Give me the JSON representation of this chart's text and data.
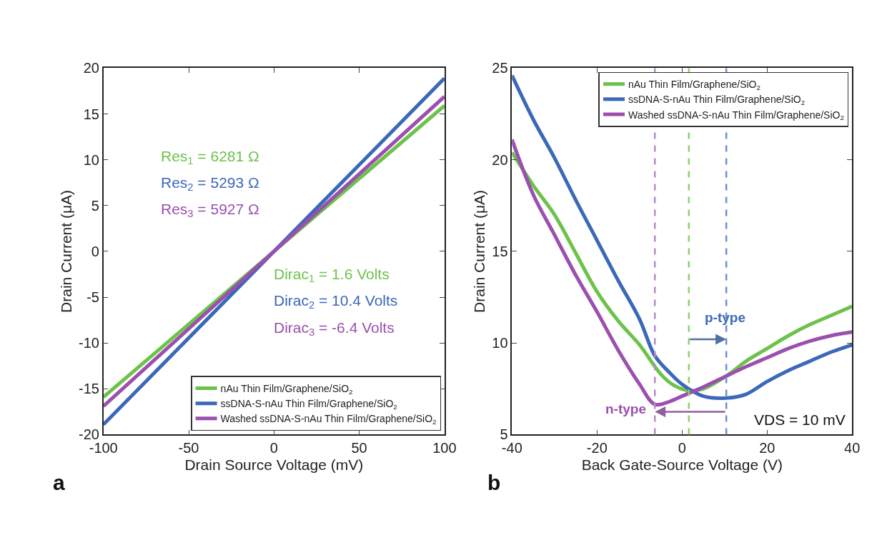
{
  "chart_data": [
    {
      "type": "line",
      "xlabel": "Drain Source Voltage (mV)",
      "ylabel": "Drain Current (μA)",
      "x": [
        -100,
        100
      ],
      "xlim": [
        -100,
        100
      ],
      "xticks": [
        -100,
        -50,
        0,
        50,
        100
      ],
      "ylim": [
        -20,
        20
      ],
      "yticks": [
        -20,
        -15,
        -10,
        -5,
        0,
        5,
        10,
        15,
        20
      ],
      "series": [
        {
          "name": "nAu Thin Film/Graphene/SiO$_{2}$",
          "color": "#6cc24a",
          "values": [
            -15.9,
            15.9
          ]
        },
        {
          "name": "ssDNA-S-nAu Thin Film/Graphene/SiO$_{2}$",
          "color": "#3b68b8",
          "values": [
            -18.9,
            18.9
          ]
        },
        {
          "name": "Washed ssDNA-S-nAu Thin Film/Graphene/SiO$_{2}$",
          "color": "#9b4fae",
          "values": [
            -16.9,
            16.9
          ]
        }
      ],
      "annotations": [
        "Res$_{1}$ = 6281 Ω",
        "Res$_{2}$ = 5293 Ω",
        "Res$_{3}$ = 5927 Ω",
        "Dirac$_{1}$ = 1.6 Volts",
        "Dirac$_{2}$ = 10.4 Volts",
        "Dirac$_{3}$ = -6.4 Volts",
        "a"
      ],
      "legend": "bottom right",
      "line_style": "solid",
      "marker": "none"
    },
    {
      "type": "line",
      "xlabel": "Back Gate-Source Voltage (V)",
      "ylabel": "Drain Current (μA)",
      "xlim": [
        -40,
        40
      ],
      "xticks": [
        -40,
        -20,
        0,
        20,
        40
      ],
      "ylim": [
        5,
        25
      ],
      "yticks": [
        5,
        10,
        15,
        20,
        25
      ],
      "series": [
        {
          "name": "nAu Thin Film/Graphene/SiO$_{2}$",
          "color": "#6cc24a",
          "x": [
            -40,
            -35,
            -30,
            -25,
            -20,
            -15,
            -10,
            -5,
            -2,
            1.6,
            5,
            10.4,
            15,
            20,
            25,
            30,
            35,
            40
          ],
          "values": [
            20.4,
            18.6,
            17.0,
            14.9,
            12.8,
            11.2,
            9.9,
            8.3,
            7.7,
            7.4,
            7.5,
            8.2,
            9.0,
            9.7,
            10.4,
            11.0,
            11.5,
            12.0
          ]
        },
        {
          "name": "ssDNA-S-nAu Thin Film/Graphene/SiO$_{2}$",
          "color": "#3b68b8",
          "x": [
            -40,
            -35,
            -30,
            -25,
            -20,
            -15,
            -10,
            -6.4,
            -3,
            0,
            5,
            10.4,
            15,
            20,
            25,
            30,
            35,
            40
          ],
          "values": [
            24.6,
            22.2,
            20.1,
            17.8,
            15.6,
            13.4,
            11.3,
            9.3,
            8.4,
            7.75,
            7.1,
            7.0,
            7.2,
            7.9,
            8.5,
            9.0,
            9.5,
            9.9
          ]
        },
        {
          "name": "Washed ssDNA-S-nAu Thin Film/Graphene/SiO$_{2}$",
          "color": "#9b4fae",
          "x": [
            -40,
            -35,
            -30,
            -25,
            -20,
            -15,
            -10,
            -6.4,
            -3,
            0,
            5,
            10.4,
            15,
            20,
            25,
            30,
            35,
            40
          ],
          "values": [
            21.1,
            18.1,
            15.9,
            13.7,
            11.7,
            9.6,
            7.75,
            6.65,
            6.8,
            7.1,
            7.6,
            8.2,
            8.7,
            9.2,
            9.7,
            10.1,
            10.4,
            10.6
          ]
        }
      ],
      "ref_lines": [
        {
          "axis": "x",
          "value": -6.4,
          "color": "#b48cc8",
          "line_style": "dashed"
        },
        {
          "axis": "x",
          "value": 1.6,
          "color": "#8fd16a",
          "line_style": "dashed"
        },
        {
          "axis": "x",
          "value": 10.4,
          "color": "#6b8fd0",
          "line_style": "dashed"
        }
      ],
      "annotations": [
        "p-type",
        "n-type",
        "VDS = 10 mV",
        "b"
      ],
      "legend": "top right",
      "line_style": "solid",
      "marker": "none"
    }
  ]
}
